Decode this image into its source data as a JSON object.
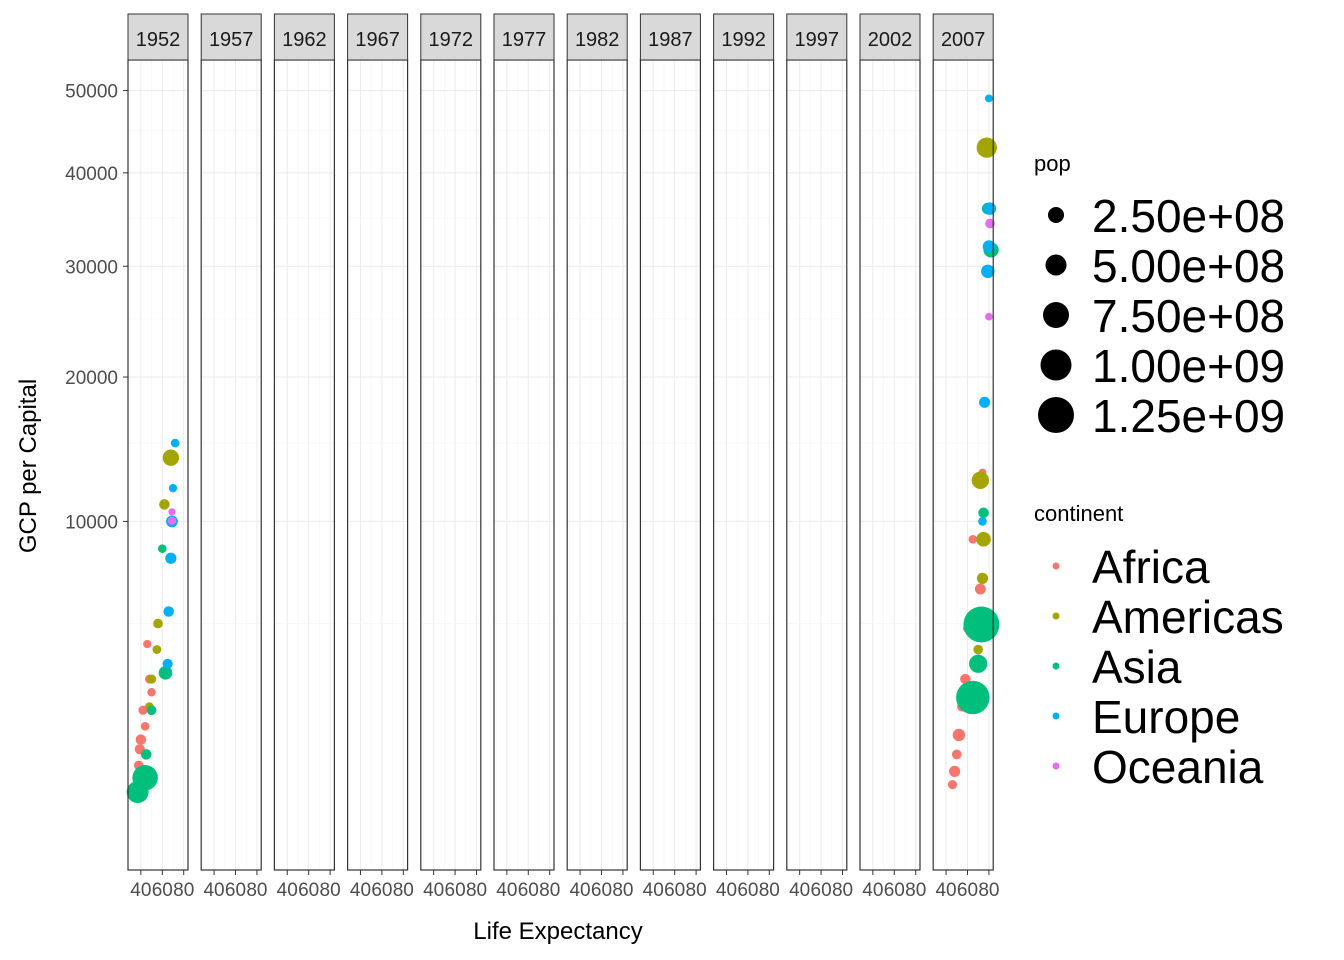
{
  "chart_data": {
    "type": "scatter",
    "title": "",
    "xlabel": "Life Expectancy",
    "ylabel": "GCP per Capital",
    "facet_variable": "year",
    "facets": [
      "1952",
      "1957",
      "1962",
      "1967",
      "1972",
      "1977",
      "1982",
      "1987",
      "1992",
      "1997",
      "2002",
      "2007"
    ],
    "x_ticks": [
      40,
      60,
      80
    ],
    "x_tick_labels": [
      "40",
      "60",
      "80"
    ],
    "xlim": [
      28,
      84
    ],
    "y_scale": "sqrt",
    "y_ticks": [
      10000,
      20000,
      30000,
      40000,
      50000
    ],
    "y_tick_labels": [
      "10000",
      "20000",
      "30000",
      "40000",
      "50000"
    ],
    "ylim": [
      0,
      54000
    ],
    "grid": true,
    "legend_position": "right",
    "size_legend": {
      "title": "pop",
      "values": [
        250000000,
        500000000,
        750000000,
        1000000000,
        1250000000
      ],
      "labels": [
        "2.50e+08",
        "5.00e+08",
        "7.50e+08",
        "1.00e+09",
        "1.25e+09"
      ]
    },
    "color_legend": {
      "title": "continent",
      "labels": [
        "Africa",
        "Americas",
        "Asia",
        "Europe",
        "Oceania"
      ],
      "colors": [
        "#F8766D",
        "#A3A500",
        "#00BF7D",
        "#00B0F6",
        "#E76BF3"
      ]
    },
    "series": [
      {
        "name": "Africa",
        "color": "#F8766D",
        "points_by_year": {
          "1952": [
            [
              40,
              1400,
              30
            ],
            [
              38,
              900,
              20
            ],
            [
              42,
              2100,
              15
            ],
            [
              36,
              700,
              10
            ],
            [
              46,
              4200,
              8
            ],
            [
              48,
              3000,
              12
            ],
            [
              39,
              1200,
              25
            ],
            [
              44,
              1700,
              10
            ],
            [
              37,
              600,
              5
            ],
            [
              50,
              2600,
              9
            ]
          ],
          "2007": [
            [
              52,
              1500,
              60
            ],
            [
              48,
              800,
              40
            ],
            [
              58,
              3000,
              30
            ],
            [
              72,
              6500,
              35
            ],
            [
              55,
              2200,
              25
            ],
            [
              46,
              600,
              15
            ],
            [
              65,
              9000,
              10
            ],
            [
              74,
              13000,
              5
            ],
            [
              60,
              4800,
              12
            ],
            [
              50,
              1100,
              20
            ]
          ]
        }
      },
      {
        "name": "Americas",
        "color": "#A3A500",
        "points_by_year": {
          "1952": [
            [
              68,
              13990,
              157
            ],
            [
              62,
              11000,
              30
            ],
            [
              56,
              5000,
              20
            ],
            [
              50,
              3000,
              15
            ],
            [
              48,
              2200,
              10
            ],
            [
              55,
              4000,
              12
            ]
          ],
          "2007": [
            [
              78,
              42950,
              301
            ],
            [
              79,
              36000,
              33
            ],
            [
              72,
              12500,
              190
            ],
            [
              75,
              9000,
              108
            ],
            [
              74,
              7000,
              40
            ],
            [
              70,
              4000,
              20
            ]
          ]
        }
      },
      {
        "name": "Asia",
        "color": "#00BF7D",
        "points_by_year": {
          "1952": [
            [
              44,
              700,
              556
            ],
            [
              37,
              500,
              372
            ],
            [
              63,
              3200,
              86
            ],
            [
              50,
              2100,
              20
            ],
            [
              60,
              8500,
              10
            ],
            [
              45,
              1100,
              30
            ]
          ],
          "2007": [
            [
              73,
              4960,
              1318
            ],
            [
              65,
              2450,
              1110
            ],
            [
              82,
              31650,
              127
            ],
            [
              79,
              36000,
              49
            ],
            [
              70,
              3500,
              220
            ],
            [
              75,
              10500,
              30
            ]
          ]
        }
      },
      {
        "name": "Europe",
        "color": "#00B0F6",
        "points_by_year": {
          "1952": [
            [
              69,
              10000,
              50
            ],
            [
              68,
              8000,
              40
            ],
            [
              66,
              5500,
              30
            ],
            [
              72,
              15000,
              10
            ],
            [
              65,
              3500,
              25
            ],
            [
              70,
              12000,
              8
            ]
          ],
          "2007": [
            [
              80,
              32000,
              60
            ],
            [
              79,
              29500,
              82
            ],
            [
              81,
              36000,
              60
            ],
            [
              76,
              18000,
              38
            ],
            [
              74,
              10000,
              10
            ],
            [
              80,
              49000,
              5
            ]
          ]
        }
      },
      {
        "name": "Oceania",
        "color": "#E76BF3",
        "points_by_year": {
          "1952": [
            [
              69,
              10040,
              8.7
            ],
            [
              69,
              10560,
              1.9
            ]
          ],
          "2007": [
            [
              81,
              34400,
              20
            ],
            [
              80,
              25200,
              4
            ]
          ]
        }
      }
    ]
  }
}
